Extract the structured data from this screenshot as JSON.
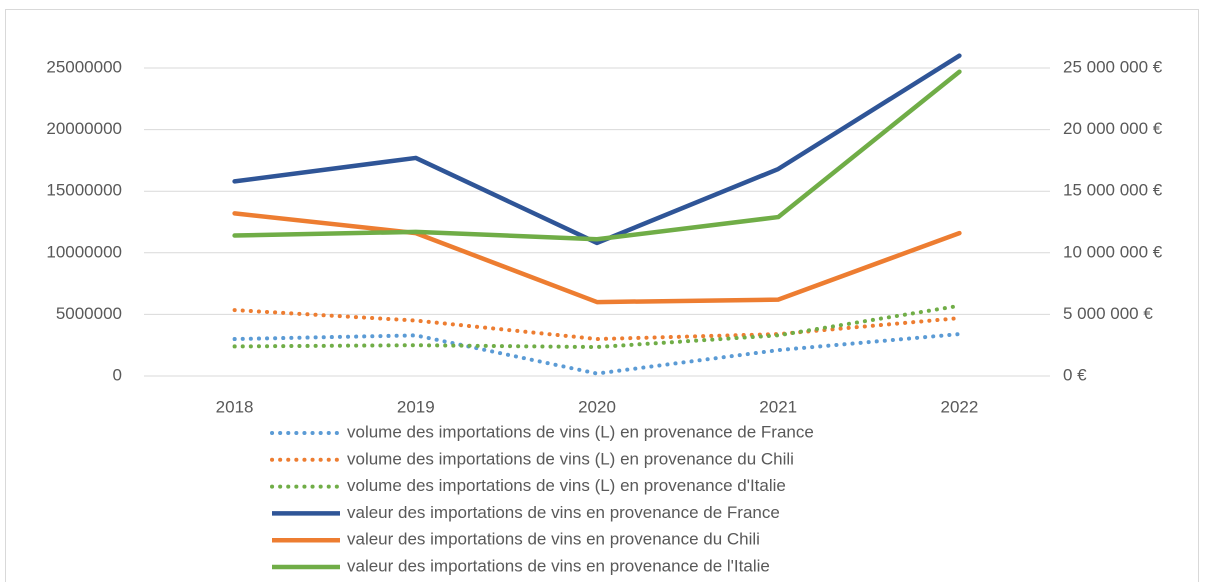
{
  "chart_data": {
    "type": "line",
    "categories": [
      "2018",
      "2019",
      "2020",
      "2021",
      "2022"
    ],
    "series": [
      {
        "name": "volume des importations de vins (L) en provenance de France",
        "color": "#5b9bd5",
        "style": "dotted",
        "values": [
          3000000,
          3300000,
          200000,
          2100000,
          3400000
        ]
      },
      {
        "name": "volume des importations de vins (L) en provenance du Chili",
        "color": "#ed7d31",
        "style": "dotted",
        "values": [
          5350000,
          4500000,
          3000000,
          3400000,
          4700000
        ]
      },
      {
        "name": "volume des importations de vins (L) en provenance d'Italie",
        "color": "#70ad47",
        "style": "dotted",
        "values": [
          2400000,
          2500000,
          2350000,
          3300000,
          5700000
        ]
      },
      {
        "name": "valeur des importations de vins en provenance de France",
        "color": "#2f5597",
        "style": "solid",
        "axis": "y2",
        "values": [
          15800000,
          17700000,
          10800000,
          16800000,
          26000000
        ]
      },
      {
        "name": "valeur des importations de vins en provenance du Chili",
        "color": "#ed7d31",
        "style": "solid",
        "axis": "y2",
        "values": [
          13200000,
          11600000,
          6000000,
          6200000,
          11600000
        ]
      },
      {
        "name": "valeur des importations de vins en provenance de l'Italie",
        "color": "#70ad47",
        "style": "solid",
        "axis": "y2",
        "values": [
          11400000,
          11700000,
          11100000,
          12900000,
          24700000
        ]
      }
    ],
    "ylim": [
      0,
      30000000
    ],
    "yticks": [
      0,
      5000000,
      10000000,
      15000000,
      20000000,
      25000000
    ],
    "y2lim": [
      0,
      30000000
    ],
    "y2ticks": [
      {
        "value": 0,
        "label": "0 €"
      },
      {
        "value": 5000000,
        "label": "5 000 000 €"
      },
      {
        "value": 10000000,
        "label": "10 000 000 €"
      },
      {
        "value": 15000000,
        "label": "15 000 000 €"
      },
      {
        "value": 20000000,
        "label": "20 000 000 €"
      },
      {
        "value": 25000000,
        "label": "25 000 000 €"
      }
    ],
    "grid": true
  }
}
